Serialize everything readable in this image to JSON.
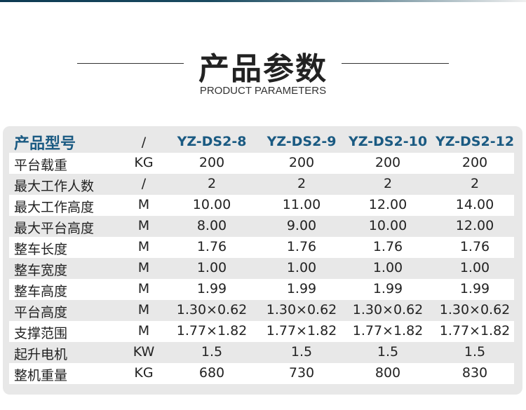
{
  "title": "产品参数",
  "subtitle": "PRODUCT PARAMETERS",
  "accent": "#1a5a82",
  "table": {
    "header": {
      "label": "产品型号",
      "unit": "/",
      "models": [
        "YZ-DS2-8",
        "YZ-DS2-9",
        "YZ-DS2-10",
        "YZ-DS2-12"
      ]
    },
    "rows": [
      {
        "label": "平台载重",
        "unit": "KG",
        "values": [
          "200",
          "200",
          "200",
          "200"
        ]
      },
      {
        "label": "最大工作人数",
        "unit": "/",
        "values": [
          "2",
          "2",
          "2",
          "2"
        ]
      },
      {
        "label": "最大工作高度",
        "unit": "M",
        "values": [
          "10.00",
          "11.00",
          "12.00",
          "14.00"
        ]
      },
      {
        "label": "最大平台高度",
        "unit": "M",
        "values": [
          "8.00",
          "9.00",
          "10.00",
          "12.00"
        ]
      },
      {
        "label": "整车长度",
        "unit": "M",
        "values": [
          "1.76",
          "1.76",
          "1.76",
          "1.76"
        ]
      },
      {
        "label": "整车宽度",
        "unit": "M",
        "values": [
          "1.00",
          "1.00",
          "1.00",
          "1.00"
        ]
      },
      {
        "label": "整车高度",
        "unit": "M",
        "values": [
          "1.99",
          "1.99",
          "1.99",
          "1.99"
        ]
      },
      {
        "label": "平台高度",
        "unit": "M",
        "values": [
          "1.30×0.62",
          "1.30×0.62",
          "1.30×0.62",
          "1.30×0.62"
        ]
      },
      {
        "label": "支撑范围",
        "unit": "M",
        "values": [
          "1.77×1.82",
          "1.77×1.82",
          "1.77×1.82",
          "1.77×1.82"
        ]
      },
      {
        "label": "起升电机",
        "unit": "KW",
        "values": [
          "1.5",
          "1.5",
          "1.5",
          "1.5"
        ]
      },
      {
        "label": "整机重量",
        "unit": "KG",
        "values": [
          "680",
          "730",
          "800",
          "830"
        ]
      }
    ]
  }
}
